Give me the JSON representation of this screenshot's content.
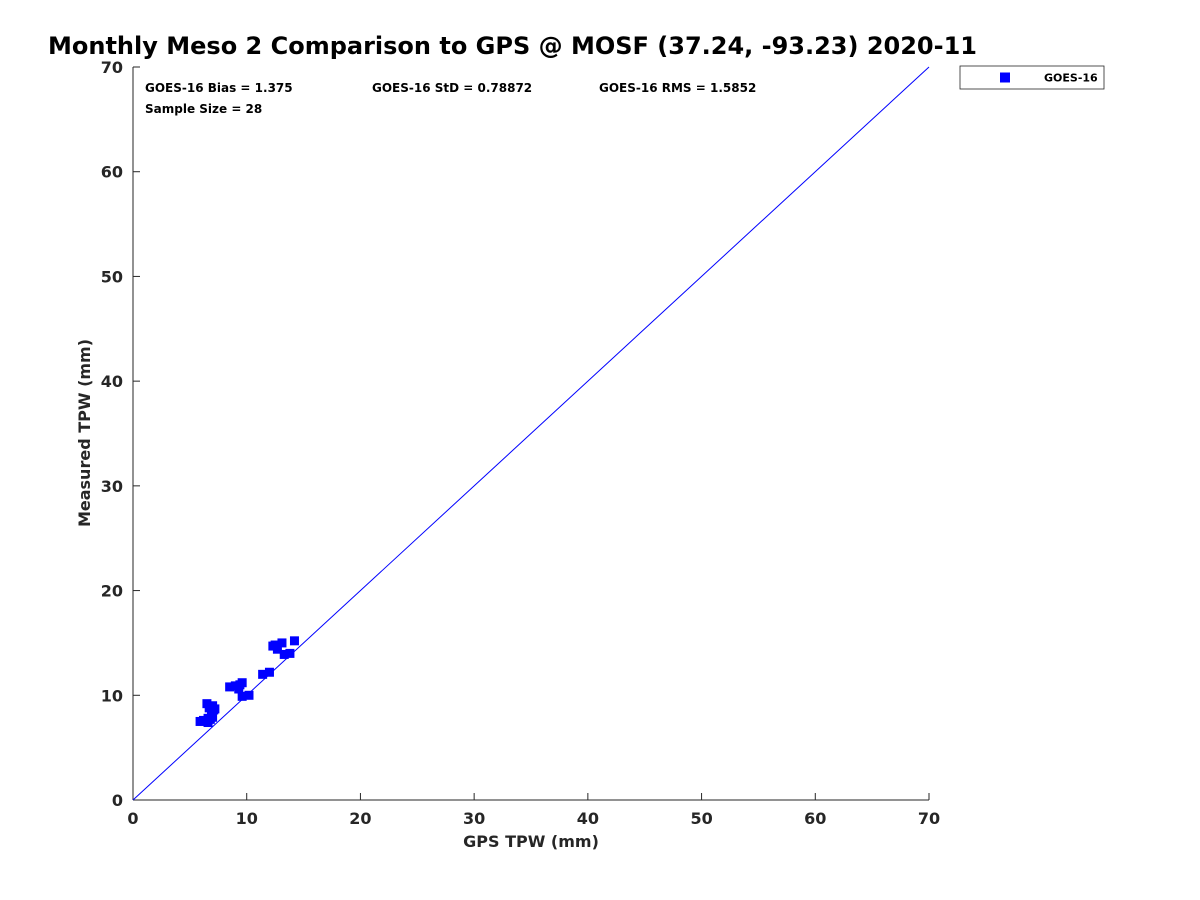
{
  "chart_data": {
    "type": "scatter",
    "title": "Monthly Meso 2 Comparison to GPS @ MOSF (37.24, -93.23) 2020-11",
    "xlabel": "GPS TPW (mm)",
    "ylabel": "Measured TPW (mm)",
    "xlim": [
      0,
      70
    ],
    "ylim": [
      0,
      70
    ],
    "xticks": [
      "0",
      "10",
      "20",
      "30",
      "40",
      "50",
      "60",
      "70"
    ],
    "yticks": [
      "0",
      "10",
      "20",
      "30",
      "40",
      "50",
      "60",
      "70"
    ],
    "grid": false,
    "legend_position": "outside top-right",
    "reference_line": {
      "x": [
        0,
        70
      ],
      "y": [
        0,
        70
      ],
      "color": "#0000ff"
    },
    "stats": {
      "bias": "GOES-16 Bias = 1.375",
      "std": "GOES-16 StD = 0.78872",
      "rms": "GOES-16 RMS = 1.5852",
      "sample": "Sample Size = 28"
    },
    "series": [
      {
        "name": "GOES-16",
        "color": "#0000ff",
        "marker": "square",
        "points": [
          [
            5.9,
            7.5
          ],
          [
            6.2,
            7.6
          ],
          [
            6.6,
            7.4
          ],
          [
            6.8,
            7.7
          ],
          [
            7.0,
            7.9
          ],
          [
            6.9,
            8.3
          ],
          [
            7.1,
            8.6
          ],
          [
            6.7,
            8.8
          ],
          [
            6.5,
            9.2
          ],
          [
            7.0,
            9.0
          ],
          [
            8.5,
            10.8
          ],
          [
            9.0,
            10.9
          ],
          [
            9.3,
            10.6
          ],
          [
            9.6,
            11.2
          ],
          [
            9.6,
            9.9
          ],
          [
            10.2,
            10.0
          ],
          [
            11.4,
            12.0
          ],
          [
            12.0,
            12.2
          ],
          [
            12.3,
            14.7
          ],
          [
            12.7,
            14.4
          ],
          [
            13.1,
            15.0
          ],
          [
            13.3,
            13.9
          ],
          [
            13.8,
            14.0
          ],
          [
            14.2,
            15.2
          ],
          [
            6.6,
            7.8
          ],
          [
            7.2,
            8.7
          ],
          [
            9.4,
            11.0
          ],
          [
            12.5,
            14.8
          ]
        ]
      }
    ]
  }
}
